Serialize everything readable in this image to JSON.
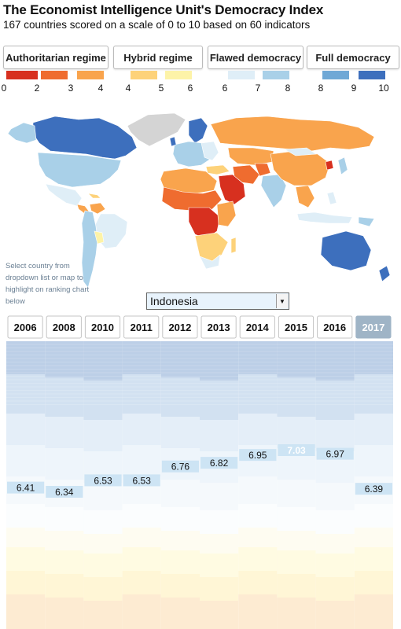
{
  "header": {
    "title": "The Economist Intelligence Unit's Democracy Index",
    "subtitle": "167 countries scored on a scale of 0 to 10 based on 60 indicators"
  },
  "categories": [
    {
      "label": "Authoritarian regime"
    },
    {
      "label": "Hybrid regime"
    },
    {
      "label": "Flawed democracy"
    },
    {
      "label": "Full democracy"
    }
  ],
  "legend": {
    "colors": [
      "#d7301f",
      "#ef6c2f",
      "#f9a44d",
      "#fdd27a",
      "#fdf3a8",
      "#dfeef7",
      "#a9d0e8",
      "#6fa8d6",
      "#3d6fbd"
    ],
    "ticks": [
      {
        "label": "0",
        "x": 5
      },
      {
        "label": "2",
        "x": 47
      },
      {
        "label": "3",
        "x": 90
      },
      {
        "label": "4",
        "x": 128
      },
      {
        "label": "4",
        "x": 163
      },
      {
        "label": "5",
        "x": 205
      },
      {
        "label": "6",
        "x": 242
      },
      {
        "label": "6",
        "x": 286
      },
      {
        "label": "7",
        "x": 328
      },
      {
        "label": "8",
        "x": 366
      },
      {
        "label": "8",
        "x": 408
      },
      {
        "label": "9",
        "x": 450
      },
      {
        "label": "10",
        "x": 488
      }
    ]
  },
  "map": {
    "note": "Select country from dropdown list or map to highlight on ranking chart below"
  },
  "selector": {
    "value": "Indonesia",
    "arrow_icon": "chevron-down-icon"
  },
  "chart_data": {
    "type": "bar",
    "title": "",
    "categories": [
      "2006",
      "2008",
      "2010",
      "2011",
      "2012",
      "2013",
      "2014",
      "2015",
      "2016",
      "2017"
    ],
    "selected_year": "2017",
    "series": [
      {
        "name": "Indonesia",
        "values": [
          6.41,
          6.34,
          6.53,
          6.53,
          6.76,
          6.82,
          6.95,
          7.03,
          6.97,
          6.39
        ]
      }
    ],
    "labels": [
      "6.41",
      "6.34",
      "6.53",
      "6.53",
      "6.76",
      "6.82",
      "6.95",
      "7.03",
      "6.97",
      "6.39"
    ],
    "highlight_color": "#cde4f4",
    "highlight_text_color": "#ffffff"
  }
}
